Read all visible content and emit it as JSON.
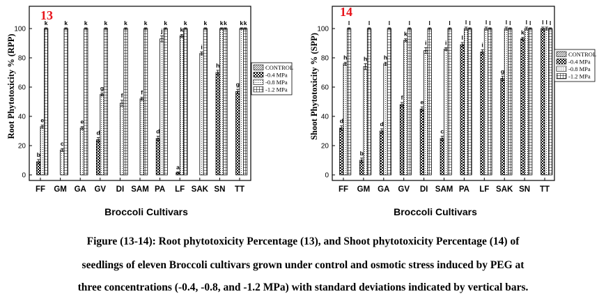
{
  "charts": [
    {
      "panel_label": "13",
      "legend": [
        "CONTROL",
        "-0.4 MPa",
        "-0.8 MPa",
        "-1.2 MPa"
      ],
      "chart_data": {
        "type": "bar",
        "xlabel": "Broccoli Cultivars",
        "ylabel": "Root Phytotoxicity % (RPP)",
        "ylim": [
          0,
          100
        ],
        "yticks": [
          0,
          20,
          40,
          60,
          80,
          100
        ],
        "categories": [
          "FF",
          "GM",
          "GA",
          "GV",
          "DI",
          "SAM",
          "PA",
          "LF",
          "SAK",
          "SN",
          "TT"
        ],
        "series": [
          {
            "name": "CONTROL",
            "values": [
              0,
              0,
              0,
              0,
              0,
              0,
              0,
              0,
              0,
              0,
              0
            ]
          },
          {
            "name": "-0.4 MPa",
            "values": [
              9,
              0,
              0,
              24,
              0,
              0,
              25,
              1.5,
              0,
              70,
              57
            ]
          },
          {
            "name": "-0.8 MPa",
            "values": [
              33,
              17,
              32,
              55,
              49,
              52,
              93,
              95,
              83,
              100,
              100
            ]
          },
          {
            "name": "-1.2 MPa",
            "values": [
              100,
              100,
              100,
              100,
              100,
              100,
              100,
              100,
              100,
              100,
              100
            ]
          }
        ],
        "errors": [
          [
            0,
            0,
            0,
            0,
            0,
            0,
            0,
            0,
            0,
            0,
            0
          ],
          [
            1.5,
            0,
            0,
            1.5,
            0,
            0,
            1.5,
            0.5,
            0,
            1.5,
            1.5
          ],
          [
            1,
            1,
            1,
            1,
            2,
            1,
            2,
            1,
            1,
            0.5,
            0.5
          ],
          [
            0.5,
            0.5,
            0.5,
            0.5,
            0.5,
            0.5,
            0.5,
            0.5,
            0.5,
            0.5,
            0.5
          ]
        ],
        "letters": [
          [
            "",
            "",
            "",
            "",
            "",
            "",
            "",
            "",
            "",
            "",
            ""
          ],
          [
            "b",
            "",
            "",
            "d",
            "",
            "",
            "d",
            "a",
            "",
            "h",
            "g"
          ],
          [
            "e",
            "c",
            "e",
            "g",
            "f",
            "f",
            "j",
            "k",
            "i",
            "k",
            "k"
          ],
          [
            "k",
            "k",
            "k",
            "k",
            "k",
            "k",
            "k",
            "k",
            "k",
            "k",
            "k"
          ]
        ]
      }
    },
    {
      "panel_label": "14",
      "legend": [
        "CONTROL",
        "-0.4 MPa",
        "-0.8 MPa",
        "-1.2 MPa"
      ],
      "chart_data": {
        "type": "bar",
        "xlabel": "Broccoli Cultivars",
        "ylabel": "Shoot Phytotoxicity % (SPP)",
        "ylim": [
          0,
          100
        ],
        "yticks": [
          0,
          20,
          40,
          60,
          80,
          100
        ],
        "categories": [
          "FF",
          "GM",
          "GA",
          "GV",
          "DI",
          "SAM",
          "PA",
          "LF",
          "SAK",
          "SN",
          "TT"
        ],
        "series": [
          {
            "name": "CONTROL",
            "values": [
              0,
              0,
              0,
              0,
              0,
              0,
              0,
              0,
              0,
              0,
              0
            ]
          },
          {
            "name": "-0.4 MPa",
            "values": [
              32,
              10,
              30,
              48,
              45,
              25,
              89,
              84,
              66,
              93,
              100
            ]
          },
          {
            "name": "-0.8 MPa",
            "values": [
              76,
              74,
              76,
              92,
              85,
              86,
              100,
              100,
              100,
              100,
              100
            ]
          },
          {
            "name": "-1.2 MPa",
            "values": [
              100,
              100,
              100,
              100,
              100,
              100,
              100,
              100,
              100,
              100,
              100
            ]
          }
        ],
        "errors": [
          [
            0,
            0,
            0,
            0,
            0,
            0,
            0,
            0,
            0,
            0,
            0
          ],
          [
            1.5,
            1.5,
            1.5,
            1.5,
            1.5,
            1.5,
            1.5,
            1.5,
            1.5,
            1,
            1
          ],
          [
            1,
            2,
            1,
            1,
            2,
            1,
            1,
            1,
            1,
            1,
            1
          ],
          [
            0.5,
            0.5,
            0.5,
            0.5,
            0.5,
            0.5,
            0.5,
            0.5,
            0.5,
            0.5,
            0.5
          ]
        ],
        "letters": [
          [
            "",
            "",
            "",
            "",
            "",
            "",
            "",
            "",
            "",
            "",
            ""
          ],
          [
            "d",
            "b",
            "d",
            "f",
            "e",
            "c",
            "l",
            "i",
            "g",
            "k",
            "l"
          ],
          [
            "h",
            "h",
            "h",
            "k",
            "i",
            "i",
            "l",
            "l",
            "l",
            "l",
            "l"
          ],
          [
            "l",
            "l",
            "l",
            "l",
            "l",
            "l",
            "l",
            "l",
            "l",
            "l",
            "l"
          ]
        ]
      }
    }
  ],
  "caption": {
    "line1": "Figure (13-14): Root phytotoxicity Percentage (13), and Shoot phytotoxicity Percentage (14) of",
    "line2": "seedlings of eleven Broccoli cultivars grown under control and osmotic stress induced by PEG at",
    "line3": "three concentrations (-0.4, -0.8, and -1.2 MPa) with standard deviations indicated by vertical bars."
  },
  "colors": {
    "panel_label": "#e8141b",
    "ink": "#000000",
    "background": "#ffffff"
  }
}
